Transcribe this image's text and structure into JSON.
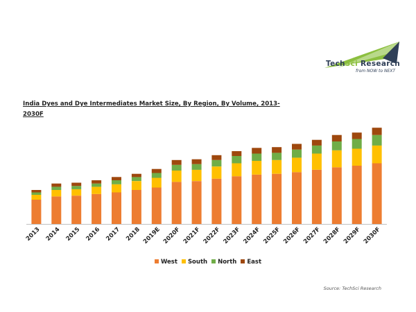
{
  "logo": {
    "name_part1": "Tech",
    "name_part2": "Sci",
    "name_part3": " Research",
    "tagline": "from NOW to NEXT"
  },
  "source": "Source: TechSci Research",
  "chart_data": {
    "type": "bar",
    "stacked": true,
    "title": "India Dyes and Dye Intermediates Market Size, By Region, By Volume, 2013-2030F",
    "xlabel": "",
    "ylabel": "",
    "categories": [
      "2013",
      "2014",
      "2015",
      "2016",
      "2017",
      "2018",
      "2019E",
      "2020F",
      "2021F",
      "2022F",
      "2023F",
      "2024F",
      "2025F",
      "2026F",
      "2027F",
      "2028F",
      "2029F",
      "2030F"
    ],
    "ylim": [
      0,
      120
    ],
    "grid": false,
    "legend_position": "bottom",
    "series": [
      {
        "name": "West",
        "color": "#ed7d31",
        "values": [
          30,
          34,
          35,
          37,
          39,
          42,
          45,
          52,
          53,
          56,
          59,
          61,
          62,
          64,
          67,
          70,
          72,
          75
        ]
      },
      {
        "name": "South",
        "color": "#ffc000",
        "values": [
          6,
          8,
          8,
          9,
          10,
          11,
          12,
          14,
          14,
          15,
          16,
          17,
          17,
          18,
          20,
          21,
          21,
          22
        ]
      },
      {
        "name": "North",
        "color": "#70ad47",
        "values": [
          3,
          4,
          4,
          4,
          5,
          5,
          6,
          7,
          7,
          8,
          9,
          9,
          9,
          10,
          10,
          11,
          12,
          13
        ]
      },
      {
        "name": "East",
        "color": "#9e480e",
        "values": [
          3,
          4,
          4,
          4,
          4,
          4,
          5,
          6,
          6,
          6,
          6,
          7,
          7,
          7,
          7,
          8,
          8,
          9
        ]
      }
    ]
  }
}
